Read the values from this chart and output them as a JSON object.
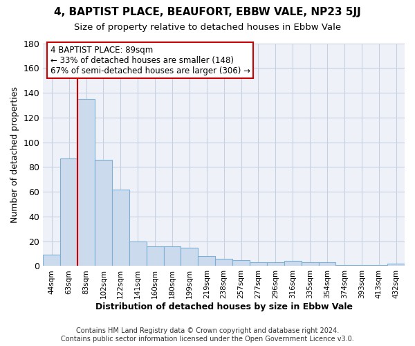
{
  "title": "4, BAPTIST PLACE, BEAUFORT, EBBW VALE, NP23 5JJ",
  "subtitle": "Size of property relative to detached houses in Ebbw Vale",
  "xlabel": "Distribution of detached houses by size in Ebbw Vale",
  "ylabel": "Number of detached properties",
  "categories": [
    "44sqm",
    "63sqm",
    "83sqm",
    "102sqm",
    "122sqm",
    "141sqm",
    "160sqm",
    "180sqm",
    "199sqm",
    "219sqm",
    "238sqm",
    "257sqm",
    "277sqm",
    "296sqm",
    "316sqm",
    "335sqm",
    "354sqm",
    "374sqm",
    "393sqm",
    "413sqm",
    "432sqm"
  ],
  "values": [
    9,
    87,
    135,
    86,
    62,
    20,
    16,
    16,
    15,
    8,
    6,
    5,
    3,
    3,
    4,
    3,
    3,
    1,
    1,
    1,
    2
  ],
  "bar_color": "#ccdaee",
  "bar_edge_color": "#7bafd4",
  "red_line_index": 2,
  "annotation_line1": "4 BAPTIST PLACE: 89sqm",
  "annotation_line2": "← 33% of detached houses are smaller (148)",
  "annotation_line3": "67% of semi-detached houses are larger (306) →",
  "annotation_box_color": "#ffffff",
  "annotation_box_edge": "#cc0000",
  "ylim": [
    0,
    180
  ],
  "yticks": [
    0,
    20,
    40,
    60,
    80,
    100,
    120,
    140,
    160,
    180
  ],
  "bg_color": "#ffffff",
  "plot_bg_color": "#eef1f8",
  "grid_color": "#c8cfe0",
  "footnote": "Contains HM Land Registry data © Crown copyright and database right 2024.\nContains public sector information licensed under the Open Government Licence v3.0."
}
